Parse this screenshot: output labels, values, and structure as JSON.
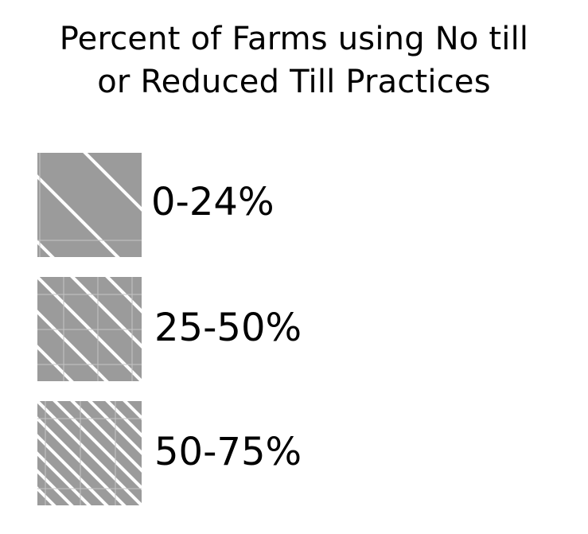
{
  "title": {
    "line1": "Percent of Farms using No till",
    "line2": "or Reduced Till Practices"
  },
  "legend": {
    "items": [
      {
        "label": "0-24%",
        "pattern": "sparse-diagonal-hatch"
      },
      {
        "label": "25-50%",
        "pattern": "medium-diagonal-hatch"
      },
      {
        "label": "50-75%",
        "pattern": "dense-diagonal-hatch"
      }
    ],
    "swatch_fill": "#9b9b9b",
    "hatch_stroke": "#ffffff"
  }
}
